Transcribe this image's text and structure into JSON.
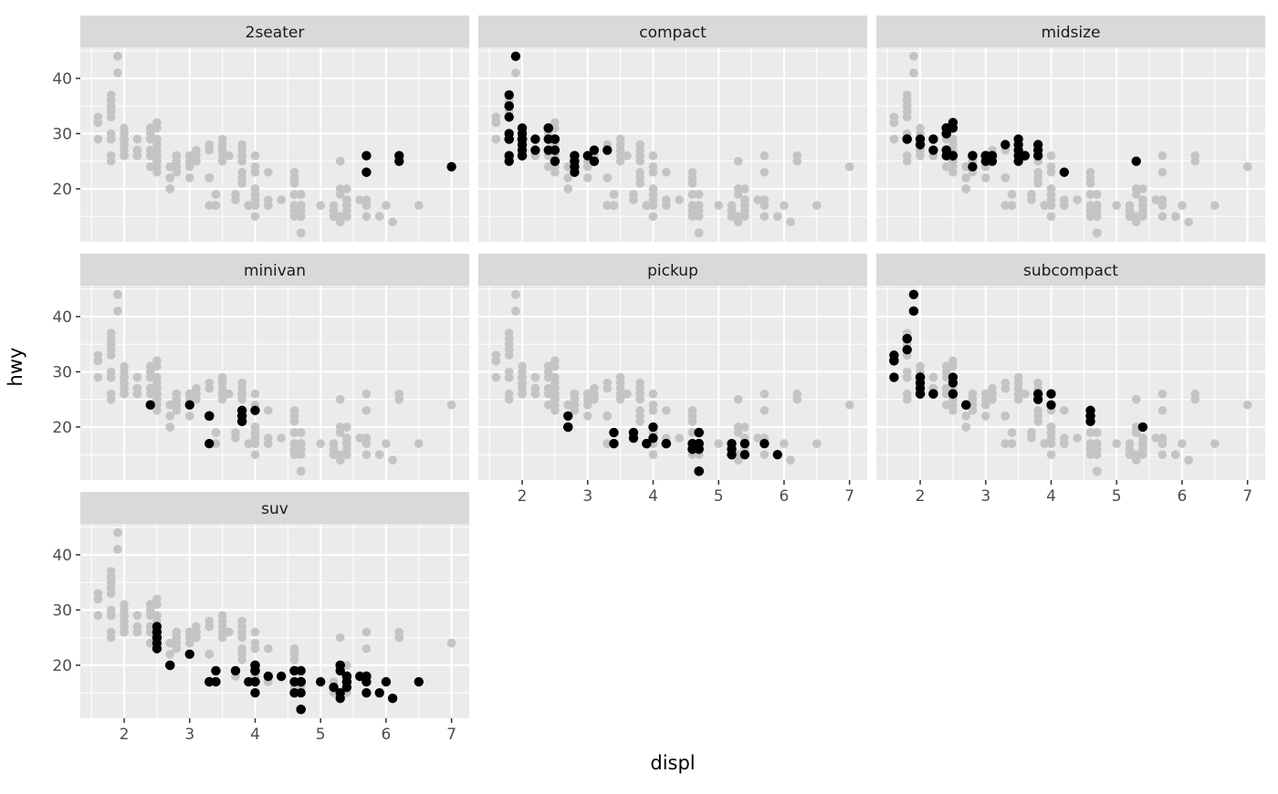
{
  "chart_data": {
    "type": "scatter",
    "title": "",
    "xlabel": "displ",
    "ylabel": "hwy",
    "facet_variable": "class",
    "facets": [
      "2seater",
      "compact",
      "midsize",
      "minivan",
      "pickup",
      "subcompact",
      "suv"
    ],
    "x_ticks": [
      2,
      3,
      4,
      5,
      6,
      7
    ],
    "y_ticks": [
      20,
      30,
      40
    ],
    "x_minor": [
      1.5,
      2.5,
      3.5,
      4.5,
      5.5,
      6.5
    ],
    "y_minor": [
      15,
      25,
      35,
      45
    ],
    "x_domain": [
      1.33,
      7.27
    ],
    "y_domain": [
      10.4,
      45.6
    ],
    "grid": true,
    "legend": "none",
    "background_series_note": "every panel shows all points in gray; the panel's own class overplotted in black",
    "points_by_class": {
      "2seater": [
        [
          5.7,
          26
        ],
        [
          5.7,
          23
        ],
        [
          6.2,
          26
        ],
        [
          6.2,
          25
        ],
        [
          7.0,
          24
        ]
      ],
      "compact": [
        [
          1.8,
          29
        ],
        [
          1.8,
          29
        ],
        [
          2.0,
          31
        ],
        [
          2.0,
          30
        ],
        [
          2.8,
          26
        ],
        [
          2.8,
          26
        ],
        [
          3.1,
          27
        ],
        [
          1.8,
          26
        ],
        [
          1.8,
          25
        ],
        [
          2.0,
          28
        ],
        [
          2.0,
          27
        ],
        [
          2.8,
          25
        ],
        [
          2.8,
          25
        ],
        [
          3.1,
          25
        ],
        [
          3.1,
          25
        ],
        [
          2.4,
          29
        ],
        [
          2.4,
          27
        ],
        [
          2.5,
          25
        ],
        [
          2.5,
          27
        ],
        [
          2.5,
          25
        ],
        [
          2.5,
          27
        ],
        [
          2.2,
          27
        ],
        [
          2.2,
          29
        ],
        [
          2.4,
          31
        ],
        [
          2.4,
          31
        ],
        [
          3.0,
          26
        ],
        [
          3.3,
          27
        ],
        [
          1.8,
          30
        ],
        [
          1.8,
          33
        ],
        [
          1.8,
          35
        ],
        [
          1.8,
          37
        ],
        [
          1.8,
          35
        ],
        [
          2.0,
          29
        ],
        [
          2.0,
          26
        ],
        [
          2.0,
          29
        ],
        [
          2.0,
          29
        ],
        [
          2.8,
          24
        ],
        [
          1.9,
          44
        ],
        [
          2.0,
          29
        ],
        [
          2.0,
          26
        ],
        [
          2.0,
          29
        ],
        [
          2.0,
          29
        ],
        [
          2.5,
          29
        ],
        [
          2.5,
          29
        ],
        [
          2.8,
          23
        ],
        [
          2.8,
          24
        ]
      ],
      "midsize": [
        [
          2.8,
          24
        ],
        [
          3.1,
          25
        ],
        [
          4.2,
          23
        ],
        [
          2.4,
          27
        ],
        [
          2.4,
          30
        ],
        [
          3.1,
          26
        ],
        [
          3.5,
          29
        ],
        [
          3.6,
          26
        ],
        [
          2.4,
          26
        ],
        [
          2.4,
          27
        ],
        [
          2.4,
          30
        ],
        [
          2.4,
          31
        ],
        [
          2.5,
          26
        ],
        [
          2.5,
          26
        ],
        [
          3.3,
          28
        ],
        [
          2.5,
          31
        ],
        [
          2.5,
          32
        ],
        [
          3.5,
          27
        ],
        [
          3.5,
          26
        ],
        [
          3.0,
          26
        ],
        [
          3.0,
          25
        ],
        [
          3.5,
          25
        ],
        [
          3.1,
          26
        ],
        [
          3.8,
          26
        ],
        [
          3.8,
          27
        ],
        [
          3.8,
          28
        ],
        [
          5.3,
          25
        ],
        [
          2.2,
          29
        ],
        [
          2.2,
          27
        ],
        [
          2.4,
          31
        ],
        [
          2.4,
          31
        ],
        [
          3.0,
          26
        ],
        [
          3.0,
          26
        ],
        [
          3.5,
          28
        ],
        [
          1.8,
          29
        ],
        [
          1.8,
          29
        ],
        [
          2.0,
          28
        ],
        [
          2.0,
          29
        ],
        [
          2.8,
          26
        ],
        [
          2.8,
          26
        ],
        [
          3.6,
          26
        ]
      ],
      "minivan": [
        [
          2.4,
          24
        ],
        [
          3.0,
          24
        ],
        [
          3.3,
          22
        ],
        [
          3.3,
          22
        ],
        [
          3.3,
          22
        ],
        [
          3.3,
          22
        ],
        [
          3.3,
          17
        ],
        [
          3.8,
          22
        ],
        [
          3.8,
          21
        ],
        [
          3.8,
          23
        ],
        [
          4.0,
          23
        ]
      ],
      "pickup": [
        [
          3.7,
          19
        ],
        [
          3.7,
          18
        ],
        [
          3.9,
          17
        ],
        [
          3.9,
          17
        ],
        [
          4.7,
          19
        ],
        [
          4.7,
          19
        ],
        [
          4.7,
          12
        ],
        [
          5.2,
          17
        ],
        [
          5.2,
          15
        ],
        [
          4.7,
          16
        ],
        [
          4.7,
          12
        ],
        [
          4.7,
          17
        ],
        [
          4.7,
          17
        ],
        [
          4.7,
          16
        ],
        [
          4.7,
          12
        ],
        [
          5.2,
          15
        ],
        [
          5.2,
          16
        ],
        [
          5.7,
          17
        ],
        [
          5.9,
          15
        ],
        [
          4.2,
          17
        ],
        [
          4.2,
          17
        ],
        [
          4.6,
          16
        ],
        [
          4.6,
          16
        ],
        [
          4.6,
          16
        ],
        [
          4.6,
          17
        ],
        [
          5.4,
          15
        ],
        [
          5.4,
          17
        ],
        [
          2.7,
          20
        ],
        [
          2.7,
          20
        ],
        [
          2.7,
          22
        ],
        [
          3.4,
          17
        ],
        [
          3.4,
          19
        ],
        [
          4.0,
          18
        ],
        [
          4.0,
          20
        ]
      ],
      "subcompact": [
        [
          3.8,
          26
        ],
        [
          3.8,
          25
        ],
        [
          4.0,
          26
        ],
        [
          4.0,
          24
        ],
        [
          4.6,
          21
        ],
        [
          4.6,
          22
        ],
        [
          4.6,
          23
        ],
        [
          4.6,
          22
        ],
        [
          5.4,
          20
        ],
        [
          1.6,
          33
        ],
        [
          1.6,
          32
        ],
        [
          1.6,
          32
        ],
        [
          1.6,
          29
        ],
        [
          1.6,
          32
        ],
        [
          1.8,
          34
        ],
        [
          1.8,
          36
        ],
        [
          1.8,
          36
        ],
        [
          2.0,
          29
        ],
        [
          2.0,
          26
        ],
        [
          2.0,
          29
        ],
        [
          2.0,
          28
        ],
        [
          2.0,
          27
        ],
        [
          2.7,
          24
        ],
        [
          2.7,
          24
        ],
        [
          2.2,
          26
        ],
        [
          2.2,
          26
        ],
        [
          2.5,
          26
        ],
        [
          2.5,
          26
        ],
        [
          1.9,
          44
        ],
        [
          1.9,
          41
        ],
        [
          2.0,
          29
        ],
        [
          2.0,
          26
        ],
        [
          2.5,
          28
        ],
        [
          2.5,
          29
        ]
      ],
      "suv": [
        [
          5.3,
          20
        ],
        [
          5.3,
          15
        ],
        [
          5.3,
          20
        ],
        [
          5.7,
          17
        ],
        [
          6.0,
          17
        ],
        [
          5.3,
          19
        ],
        [
          5.3,
          14
        ],
        [
          5.7,
          15
        ],
        [
          6.5,
          17
        ],
        [
          3.9,
          17
        ],
        [
          4.7,
          17
        ],
        [
          4.7,
          12
        ],
        [
          4.7,
          17
        ],
        [
          4.7,
          17
        ],
        [
          5.2,
          16
        ],
        [
          5.7,
          18
        ],
        [
          5.9,
          15
        ],
        [
          4.6,
          17
        ],
        [
          5.4,
          17
        ],
        [
          5.4,
          18
        ],
        [
          4.0,
          17
        ],
        [
          4.0,
          19
        ],
        [
          4.0,
          17
        ],
        [
          4.0,
          19
        ],
        [
          4.6,
          19
        ],
        [
          3.0,
          22
        ],
        [
          3.7,
          19
        ],
        [
          4.0,
          20
        ],
        [
          4.7,
          17
        ],
        [
          4.7,
          12
        ],
        [
          4.7,
          19
        ],
        [
          5.7,
          18
        ],
        [
          6.1,
          14
        ],
        [
          4.0,
          15
        ],
        [
          4.2,
          18
        ],
        [
          4.4,
          18
        ],
        [
          4.6,
          15
        ],
        [
          5.4,
          17
        ],
        [
          5.4,
          16
        ],
        [
          5.4,
          18
        ],
        [
          4.0,
          17
        ],
        [
          4.0,
          19
        ],
        [
          4.6,
          19
        ],
        [
          5.0,
          17
        ],
        [
          3.3,
          17
        ],
        [
          3.3,
          17
        ],
        [
          4.0,
          20
        ],
        [
          5.6,
          18
        ],
        [
          2.5,
          25
        ],
        [
          2.5,
          24
        ],
        [
          2.5,
          27
        ],
        [
          2.5,
          25
        ],
        [
          2.5,
          26
        ],
        [
          2.5,
          23
        ],
        [
          2.7,
          20
        ],
        [
          2.7,
          20
        ],
        [
          3.4,
          19
        ],
        [
          3.4,
          17
        ],
        [
          4.0,
          20
        ],
        [
          4.7,
          17
        ],
        [
          4.7,
          15
        ],
        [
          5.7,
          18
        ]
      ]
    }
  },
  "style": {
    "panel_bg": "#EBEBEB",
    "strip_bg": "#D9D9D9",
    "grid_color": "#FFFFFF",
    "gray_point": "#C4C4C4",
    "black_point": "#000000",
    "axis_text": "#4D4D4D",
    "strip_text": "#1A1A1A",
    "axis_title": "#000000",
    "tick_mark": "#333333"
  }
}
